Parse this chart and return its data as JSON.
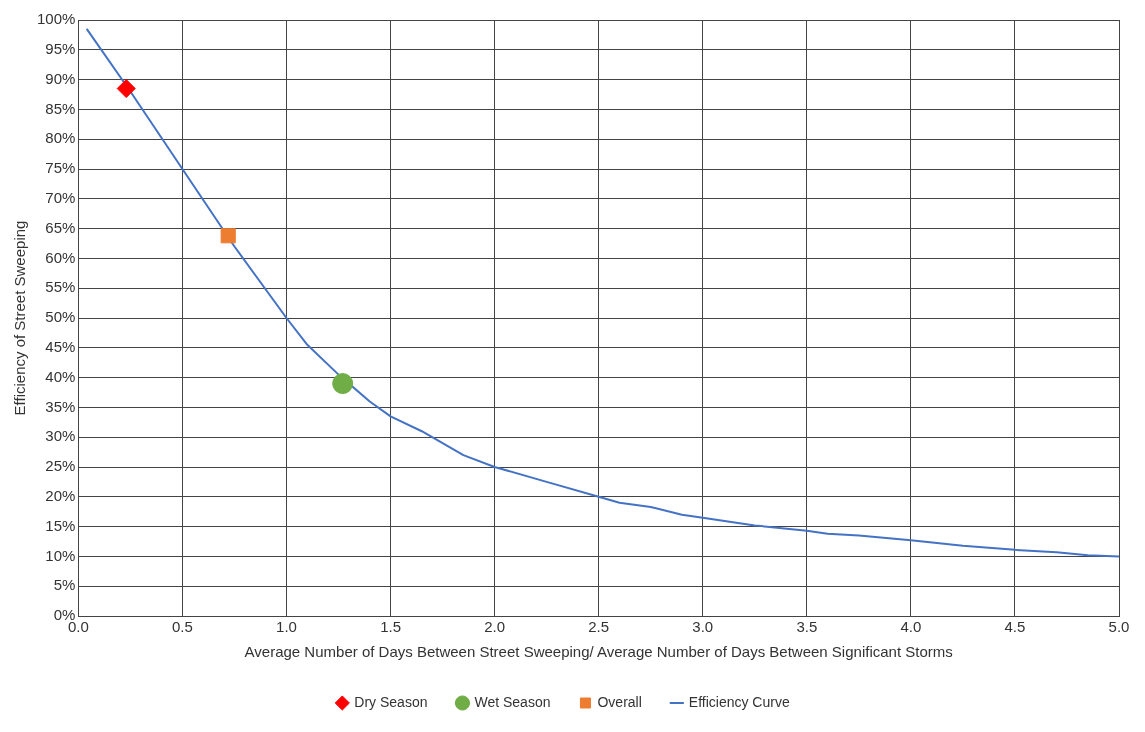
{
  "chart_data": {
    "type": "scatter",
    "xlabel": "Average Number of Days Between Street Sweeping/ Average Number of Days Between Significant Storms",
    "ylabel": "Efficiency of Street Sweeping",
    "xlim": [
      0,
      5
    ],
    "xticks": [
      {
        "value": 0,
        "label": "0.0"
      },
      {
        "value": 0.5,
        "label": "0.5"
      },
      {
        "value": 1,
        "label": "1.0"
      },
      {
        "value": 1.5,
        "label": "1.5"
      },
      {
        "value": 2,
        "label": "2.0"
      },
      {
        "value": 2.5,
        "label": "2.5"
      },
      {
        "value": 3,
        "label": "3.0"
      },
      {
        "value": 3.5,
        "label": "3.5"
      },
      {
        "value": 4,
        "label": "4.0"
      },
      {
        "value": 4.5,
        "label": "4.5"
      },
      {
        "value": 5,
        "label": "5.0"
      }
    ],
    "ylim": [
      0,
      100
    ],
    "yticks": [
      {
        "value": 0,
        "label": "0%"
      },
      {
        "value": 5,
        "label": "5%"
      },
      {
        "value": 10,
        "label": "10%"
      },
      {
        "value": 15,
        "label": "15%"
      },
      {
        "value": 20,
        "label": "20%"
      },
      {
        "value": 25,
        "label": "25%"
      },
      {
        "value": 30,
        "label": "30%"
      },
      {
        "value": 35,
        "label": "35%"
      },
      {
        "value": 40,
        "label": "40%"
      },
      {
        "value": 45,
        "label": "45%"
      },
      {
        "value": 50,
        "label": "50%"
      },
      {
        "value": 55,
        "label": "55%"
      },
      {
        "value": 60,
        "label": "60%"
      },
      {
        "value": 65,
        "label": "65%"
      },
      {
        "value": 70,
        "label": "70%"
      },
      {
        "value": 75,
        "label": "75%"
      },
      {
        "value": 80,
        "label": "80%"
      },
      {
        "value": 85,
        "label": "85%"
      },
      {
        "value": 90,
        "label": "90%"
      },
      {
        "value": 95,
        "label": "95%"
      },
      {
        "value": 100,
        "label": "100%"
      }
    ],
    "grid": true,
    "legend": "bottom",
    "series": [
      {
        "name": "Dry Season",
        "type": "scatter",
        "marker": "diamond",
        "color": "#ff0000",
        "x": [
          0.23
        ],
        "values": [
          88.5
        ]
      },
      {
        "name": "Wet Season",
        "type": "scatter",
        "marker": "circle",
        "color": "#70ad47",
        "x": [
          1.27
        ],
        "values": [
          39
        ]
      },
      {
        "name": "Overall",
        "type": "scatter",
        "marker": "square",
        "color": "#ed7d31",
        "x": [
          0.72
        ],
        "values": [
          63.8
        ]
      },
      {
        "name": "Efficiency Curve",
        "type": "line",
        "marker": "none",
        "color": "#4472c4",
        "x": [
          0.04,
          0.25,
          0.5,
          0.75,
          1.0,
          1.1,
          1.25,
          1.4,
          1.5,
          1.65,
          1.85,
          2.0,
          2.25,
          2.5,
          2.6,
          2.75,
          2.9,
          3.0,
          3.25,
          3.5,
          3.6,
          3.75,
          4.0,
          4.25,
          4.5,
          4.7,
          4.85,
          5.0
        ],
        "values": [
          98.5,
          88,
          75,
          62,
          50,
          45.5,
          40.5,
          36,
          33.5,
          31,
          27,
          25,
          22.5,
          20,
          19,
          18.3,
          17,
          16.5,
          15.2,
          14.3,
          13.8,
          13.5,
          12.7,
          11.8,
          11.1,
          10.7,
          10.2,
          10
        ]
      }
    ]
  }
}
